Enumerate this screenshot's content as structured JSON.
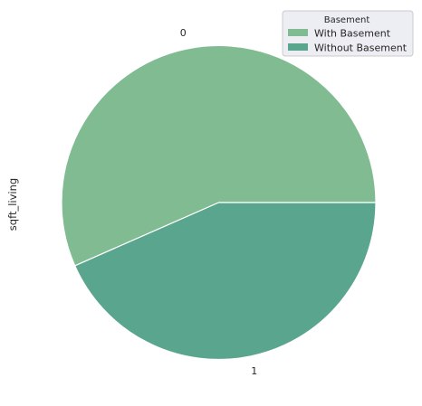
{
  "chart_data": {
    "type": "pie",
    "ylabel": "sqft_living",
    "categories": [
      "0",
      "1"
    ],
    "values": [
      56.6,
      43.4
    ],
    "colors": [
      "#80bb92",
      "#5aa58e"
    ],
    "start_angle_deg": 0,
    "direction": "counterclockwise",
    "legend": {
      "title": "Basement",
      "placement": "top-right",
      "entries": [
        "With Basement",
        "Without Basement"
      ]
    }
  }
}
